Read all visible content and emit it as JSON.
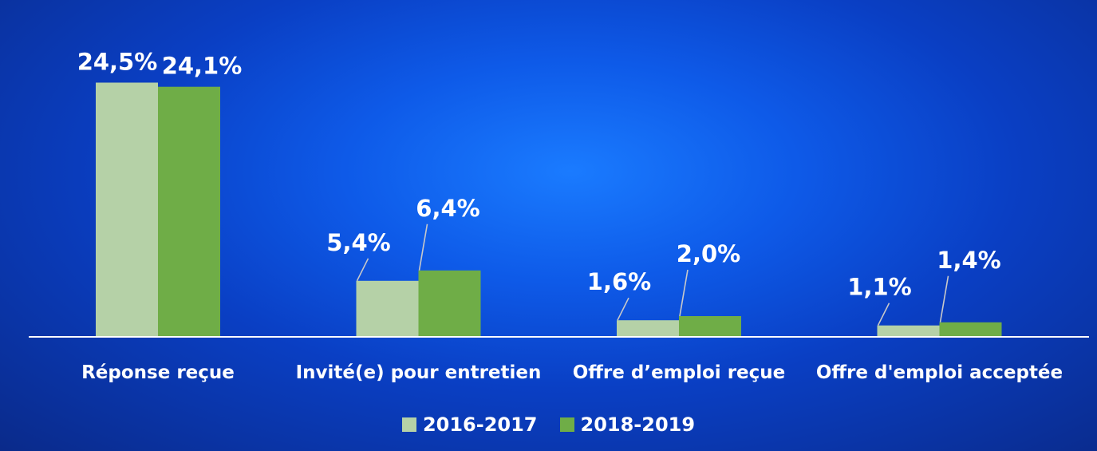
{
  "chart_data": {
    "type": "bar",
    "categories": [
      "Réponse reçue",
      "Invité(e) pour entretien",
      "Offre d’emploi reçue",
      "Offre d'emploi acceptée"
    ],
    "series": [
      {
        "name": "2016-2017",
        "values": [
          24.5,
          5.4,
          1.6,
          1.1
        ],
        "labels": [
          "24,5%",
          "5,4%",
          "1,6%",
          "1,1%"
        ],
        "color": "#b5d1a7"
      },
      {
        "name": "2018-2019",
        "values": [
          24.1,
          6.4,
          2.0,
          1.4
        ],
        "labels": [
          "24,1%",
          "6,4%",
          "2,0%",
          "1,4%"
        ],
        "color": "#6fad47"
      }
    ],
    "ylim": [
      0,
      25
    ],
    "grid": false,
    "legend": "bottom-center"
  },
  "colors": {
    "axis": "#ffffff",
    "label": "#ffffff"
  }
}
